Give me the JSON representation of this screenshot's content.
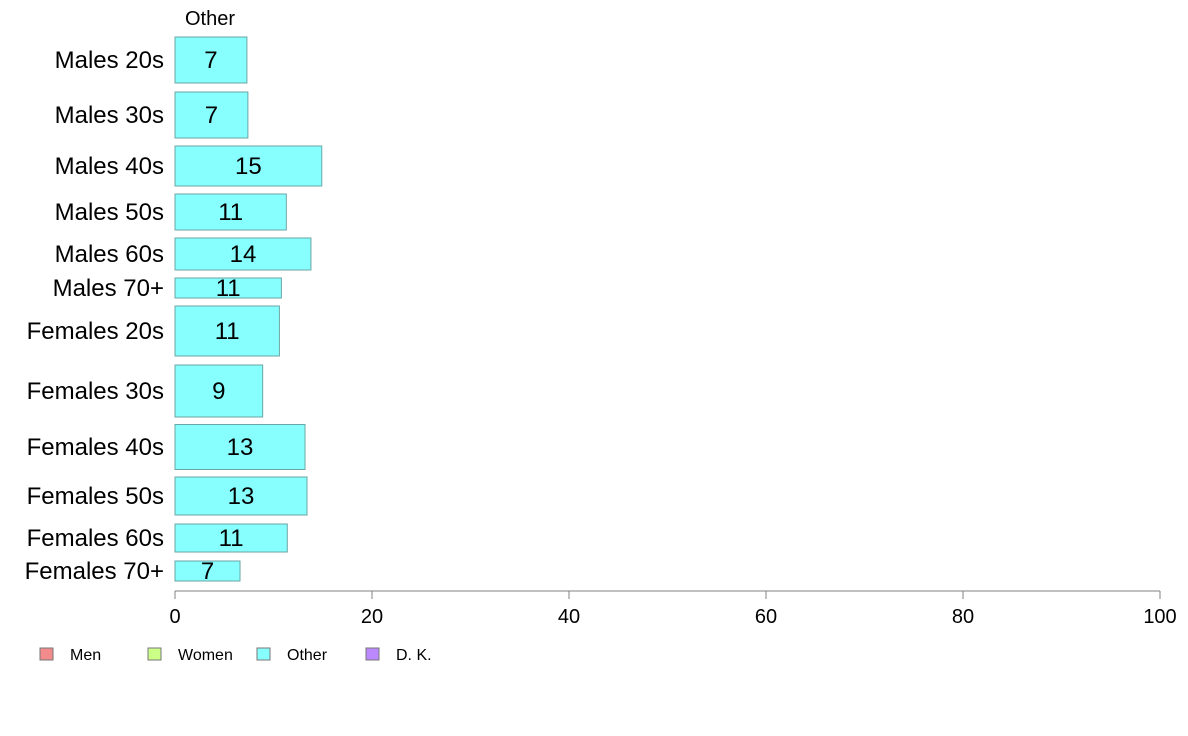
{
  "chart_data": {
    "type": "bar",
    "orientation": "horizontal",
    "panel_title": "Other",
    "categories": [
      "Males 20s",
      "Males 30s",
      "Males 40s",
      "Males 50s",
      "Males 60s",
      "Males 70+",
      "Females 20s",
      "Females 30s",
      "Females 40s",
      "Females 50s",
      "Females 60s",
      "Females 70+"
    ],
    "series": [
      {
        "name": "Other",
        "values": [
          7.3,
          7.4,
          14.9,
          11.3,
          13.8,
          10.8,
          10.6,
          8.9,
          13.2,
          13.4,
          11.4,
          6.6
        ],
        "labels": [
          "7",
          "7",
          "15",
          "11",
          "14",
          "11",
          "11",
          "9",
          "13",
          "13",
          "11",
          "7"
        ]
      }
    ],
    "xlim": [
      0,
      100
    ],
    "xticks": [
      0,
      20,
      40,
      60,
      80,
      100
    ],
    "grid": false,
    "legend": {
      "position": "bottom-left",
      "items": [
        {
          "label": "Men",
          "color": "#f28b8b"
        },
        {
          "label": "Women",
          "color": "#ccff88"
        },
        {
          "label": "Other",
          "color": "#88ffff"
        },
        {
          "label": "D. K.",
          "color": "#bb88ff"
        }
      ]
    },
    "bar_color": "#88ffff",
    "bar_stroke": "#6aa6a6"
  }
}
